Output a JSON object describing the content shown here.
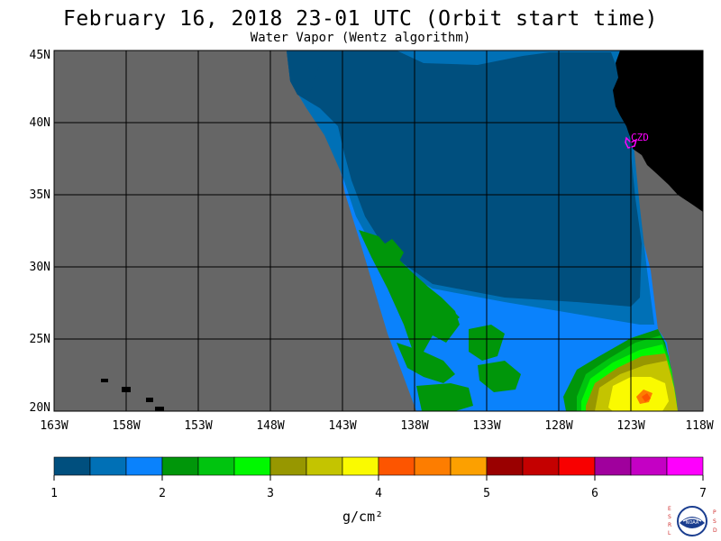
{
  "header": {
    "title": "February 16, 2018  23-01 UTC  (Orbit start time)",
    "subtitle": "Water Vapor (Wentz algorithm)"
  },
  "map": {
    "lat_labels": [
      "45N",
      "40N",
      "35N",
      "30N",
      "25N",
      "20N"
    ],
    "lon_labels": [
      "163W",
      "158W",
      "153W",
      "148W",
      "143W",
      "138W",
      "133W",
      "128W",
      "123W",
      "118W"
    ],
    "station": {
      "label": "CZD"
    }
  },
  "colorbar": {
    "colors": [
      "#004f7e",
      "#0070b6",
      "#0a82fc",
      "#00960a",
      "#00c40f",
      "#00f800",
      "#979700",
      "#c4c400",
      "#fafa00",
      "#fd5500",
      "#fd7d00",
      "#fca000",
      "#9a0000",
      "#c40000",
      "#f80000",
      "#a0009d",
      "#c400c4",
      "#fe00fd"
    ],
    "tick_labels": [
      "1",
      "2",
      "3",
      "4",
      "5",
      "6",
      "7"
    ],
    "unit": "g/cm²"
  },
  "logo": {
    "left_letters": [
      "E",
      "S",
      "R",
      "L"
    ],
    "right_letters": [
      "P",
      "S",
      "D"
    ],
    "center": "NOAA"
  },
  "colors": {
    "land": "#000000",
    "no_data": "#666666",
    "station": "#ff00ff"
  }
}
